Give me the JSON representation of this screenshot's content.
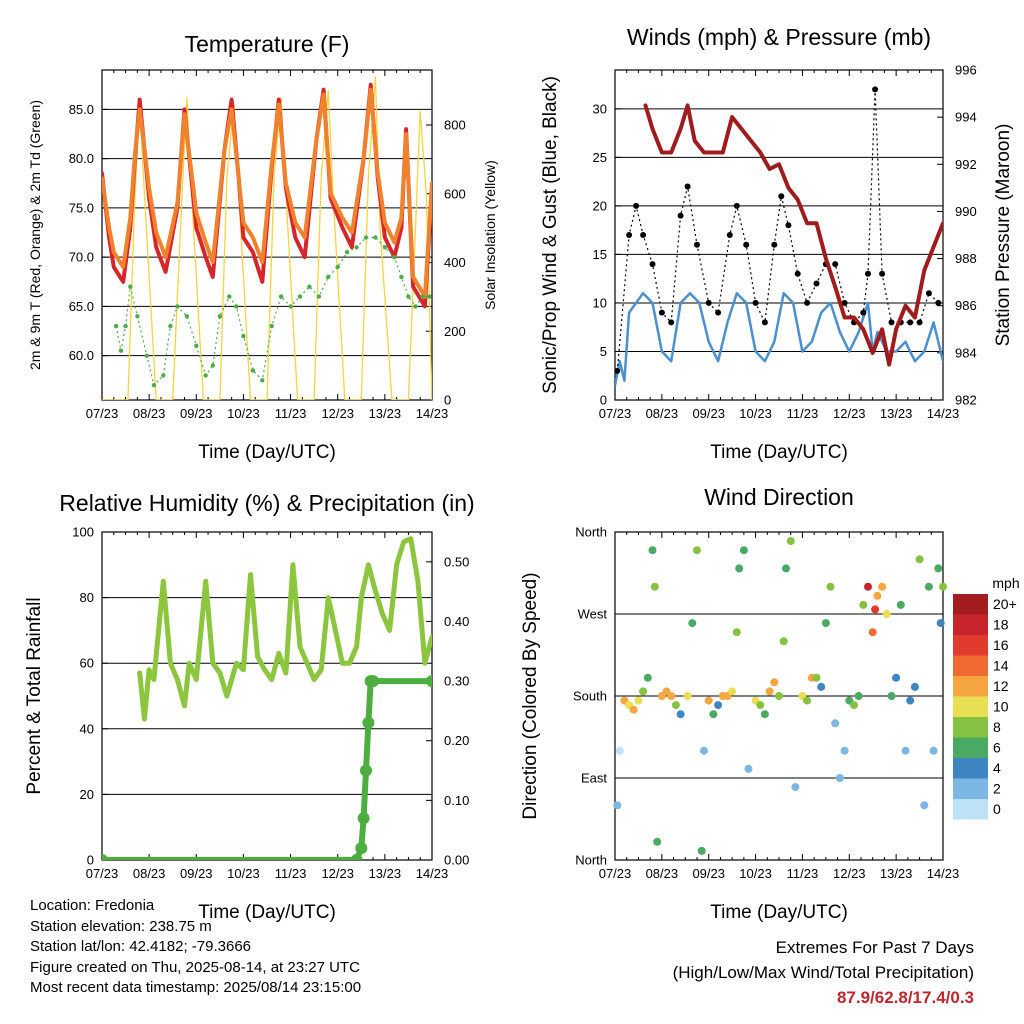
{
  "x_ticks": [
    "07/23",
    "08/23",
    "09/23",
    "10/23",
    "11/23",
    "12/23",
    "13/23",
    "14/23"
  ],
  "footer": {
    "location": "Location: Fredonia",
    "elevation": "Station elevation: 238.75 m",
    "latlon": "Station lat/lon: 42.4182; -79.3666",
    "created": "Figure created on Thu, 2025-08-14, at 23:27 UTC",
    "recent": "Most recent data timestamp: 2025/08/14 23:15:00"
  },
  "extremes": {
    "title": "Extremes For Past 7 Days",
    "subtitle": "(High/Low/Max Wind/Total Precipitation)",
    "values": "87.9/62.8/17.4/0.3",
    "value_color": "#c0272d"
  },
  "chart_data": [
    {
      "id": "temperature",
      "type": "line",
      "title": "Temperature (F)",
      "xlabel": "Time (Day/UTC)",
      "ylabel": "2m & 9m T (Red, Orange) & 2m Td (Green)",
      "ylabel_right": "Solar Insolation (Yellow)",
      "xlim": [
        0,
        7
      ],
      "ylim": [
        55.5,
        89
      ],
      "ylim_right": [
        0,
        960
      ],
      "yticks": [
        "60.0",
        "65.0",
        "70.0",
        "75.0",
        "80.0",
        "85.0"
      ],
      "yticks_right": [
        "0",
        "200",
        "400",
        "600",
        "800"
      ],
      "grid": true,
      "series": [
        {
          "name": "2m T",
          "color": "#d7262a",
          "axis": "left",
          "x": [
            0,
            0.15,
            0.25,
            0.45,
            0.6,
            0.7,
            0.8,
            1.0,
            1.15,
            1.35,
            1.6,
            1.75,
            2.0,
            2.2,
            2.35,
            2.6,
            2.75,
            2.9,
            3.0,
            3.2,
            3.4,
            3.6,
            3.75,
            3.9,
            4.1,
            4.3,
            4.55,
            4.7,
            4.85,
            5.1,
            5.3,
            5.55,
            5.7,
            5.85,
            6.0,
            6.2,
            6.35,
            6.45,
            6.6,
            6.85,
            7.0
          ],
          "y": [
            78.5,
            72,
            69,
            67.5,
            73,
            80,
            86,
            76,
            71,
            68.5,
            75,
            85,
            73,
            70,
            68,
            81,
            86,
            78,
            72,
            70.5,
            67.5,
            79,
            86,
            77,
            72,
            70,
            82,
            87,
            76,
            73,
            71,
            80,
            87.5,
            78,
            72,
            70,
            73,
            83,
            67,
            65,
            77
          ]
        },
        {
          "name": "9m T",
          "color": "#f0822e",
          "axis": "left",
          "x": [
            0,
            0.15,
            0.25,
            0.45,
            0.6,
            0.7,
            0.8,
            1.0,
            1.15,
            1.35,
            1.6,
            1.75,
            2.0,
            2.2,
            2.35,
            2.6,
            2.75,
            2.9,
            3.0,
            3.2,
            3.4,
            3.6,
            3.75,
            3.9,
            4.1,
            4.3,
            4.55,
            4.7,
            4.85,
            5.1,
            5.3,
            5.55,
            5.7,
            5.85,
            6.0,
            6.2,
            6.35,
            6.45,
            6.6,
            6.85,
            7.0
          ],
          "y": [
            78,
            73,
            70.5,
            69,
            74,
            80.5,
            85,
            77,
            72.5,
            70,
            75.5,
            84.5,
            74.5,
            71.5,
            69.5,
            81,
            85,
            78,
            73.5,
            72,
            69.5,
            79.5,
            85.5,
            77.5,
            73.5,
            72,
            82,
            86.5,
            76.5,
            74,
            72.5,
            80,
            87,
            78.5,
            73.5,
            71.5,
            74,
            82.5,
            68,
            66,
            77.5
          ]
        },
        {
          "name": "2m Td",
          "color": "#4cad47",
          "axis": "left",
          "x": [
            0.3,
            0.4,
            0.5,
            0.6,
            0.75,
            0.95,
            1.1,
            1.3,
            1.45,
            1.6,
            1.8,
            2.0,
            2.2,
            2.35,
            2.5,
            2.7,
            2.85,
            3.0,
            3.2,
            3.4,
            3.6,
            3.8,
            4.0,
            4.2,
            4.4,
            4.6,
            4.8,
            5.0,
            5.2,
            5.4,
            5.6,
            5.8,
            6.0,
            6.2,
            6.35,
            6.5,
            6.65,
            6.8,
            6.95
          ],
          "y": [
            63,
            60.5,
            63,
            67,
            64,
            60,
            57,
            58,
            63,
            65,
            64,
            61,
            58,
            59,
            64,
            66,
            65,
            62,
            58.5,
            57.5,
            63,
            66,
            65,
            66,
            67,
            66,
            68,
            69,
            70.5,
            71,
            72,
            72,
            71,
            70,
            68,
            66,
            65,
            66,
            66
          ]
        },
        {
          "name": "Solar Insolation",
          "color": "#f7d33c",
          "axis": "right",
          "x": [
            0,
            0.55,
            0.7,
            0.8,
            0.9,
            1.15,
            1.5,
            1.7,
            1.8,
            1.9,
            2.15,
            2.5,
            2.65,
            2.8,
            2.9,
            3.15,
            3.5,
            3.65,
            3.8,
            3.9,
            4.15,
            4.5,
            4.65,
            4.8,
            4.9,
            5.15,
            5.5,
            5.65,
            5.8,
            5.9,
            6.15,
            6.5,
            6.62,
            6.75,
            6.88,
            7.0
          ],
          "y": [
            0,
            0,
            600,
            860,
            600,
            0,
            0,
            600,
            880,
            600,
            0,
            0,
            650,
            860,
            600,
            0,
            0,
            650,
            880,
            600,
            0,
            0,
            650,
            900,
            600,
            0,
            0,
            650,
            940,
            500,
            0,
            0,
            400,
            840,
            600,
            0
          ]
        }
      ]
    },
    {
      "id": "winds",
      "type": "line",
      "title": "Winds (mph) & Pressure (mb)",
      "xlabel": "Time (Day/UTC)",
      "ylabel": "Sonic/Prop Wind & Gust (Blue, Black)",
      "ylabel_right": "Station Pressure (Maroon)",
      "xlim": [
        0,
        7
      ],
      "ylim": [
        0,
        34
      ],
      "ylim_right": [
        982,
        996
      ],
      "yticks": [
        "0",
        "5",
        "10",
        "15",
        "20",
        "25",
        "30"
      ],
      "yticks_right": [
        "982",
        "984",
        "986",
        "988",
        "990",
        "992",
        "994",
        "996"
      ],
      "grid": true,
      "series": [
        {
          "name": "Wind",
          "color": "#4a90cf",
          "axis": "left",
          "x": [
            0,
            0.1,
            0.2,
            0.3,
            0.45,
            0.6,
            0.8,
            1.0,
            1.2,
            1.4,
            1.6,
            1.8,
            2.0,
            2.2,
            2.4,
            2.6,
            2.8,
            3.0,
            3.2,
            3.4,
            3.6,
            3.8,
            4.0,
            4.2,
            4.4,
            4.6,
            4.8,
            5.0,
            5.2,
            5.4,
            5.5,
            5.6,
            5.8,
            6.0,
            6.2,
            6.4,
            6.6,
            6.8,
            7.0
          ],
          "y": [
            1.5,
            4,
            2,
            9,
            10,
            11,
            10,
            5,
            4,
            10,
            11,
            10,
            6,
            4,
            8,
            11,
            10,
            5,
            4,
            6,
            11,
            10,
            5,
            6,
            9,
            10,
            7,
            5,
            7,
            10,
            5,
            7,
            5,
            5,
            6,
            4,
            5,
            8,
            4
          ]
        },
        {
          "name": "Gust",
          "color": "#000000",
          "axis": "left",
          "x": [
            0.05,
            0.3,
            0.45,
            0.6,
            0.8,
            1.0,
            1.2,
            1.4,
            1.55,
            1.75,
            2.0,
            2.2,
            2.45,
            2.6,
            2.8,
            3.0,
            3.2,
            3.4,
            3.55,
            3.7,
            3.9,
            4.1,
            4.3,
            4.5,
            4.7,
            4.9,
            5.1,
            5.3,
            5.4,
            5.55,
            5.7,
            5.9,
            6.1,
            6.3,
            6.5,
            6.7,
            6.9
          ],
          "y": [
            3,
            17,
            20,
            17,
            14,
            9,
            8,
            19,
            22,
            16,
            10,
            9,
            17,
            20,
            16,
            10,
            8,
            16,
            21,
            18,
            13,
            10,
            12,
            14,
            14,
            10,
            8,
            9,
            13,
            32,
            13,
            8,
            8,
            8,
            8,
            11,
            10
          ]
        },
        {
          "name": "Station Pressure",
          "color": "#a01c1c",
          "axis": "right",
          "x": [
            0.65,
            0.8,
            1.0,
            1.2,
            1.4,
            1.55,
            1.7,
            1.9,
            2.1,
            2.3,
            2.5,
            2.7,
            2.9,
            3.1,
            3.3,
            3.5,
            3.7,
            3.9,
            4.1,
            4.3,
            4.5,
            4.7,
            4.9,
            5.1,
            5.3,
            5.5,
            5.7,
            5.85,
            6.0,
            6.2,
            6.4,
            6.6,
            6.8,
            7.0
          ],
          "y": [
            994.5,
            993.5,
            992.5,
            992.5,
            993.5,
            994.5,
            993,
            992.5,
            992.5,
            992.5,
            994,
            993.5,
            993,
            992.5,
            991.8,
            992,
            991,
            990.5,
            989.5,
            989.5,
            988,
            986.8,
            985.5,
            985.5,
            985,
            984,
            985,
            983.5,
            985,
            986,
            985.5,
            987.5,
            988.5,
            989.5
          ]
        }
      ]
    },
    {
      "id": "humidity",
      "type": "line",
      "title": "Relative Humidity (%) & Precipitation (in)",
      "xlabel": "Time (Day/UTC)",
      "ylabel": "Percent & Total Rainfall",
      "xlim": [
        0,
        7
      ],
      "ylim": [
        0,
        100
      ],
      "ylim_right": [
        0,
        0.55
      ],
      "yticks": [
        "0",
        "20",
        "40",
        "60",
        "80",
        "100"
      ],
      "yticks_right": [
        "0.00",
        "0.10",
        "0.20",
        "0.30",
        "0.40",
        "0.50"
      ],
      "grid": true,
      "series": [
        {
          "name": "Relative Humidity",
          "color": "#8cc63e",
          "axis": "left",
          "x": [
            0.8,
            0.9,
            1.0,
            1.1,
            1.3,
            1.45,
            1.6,
            1.75,
            1.85,
            2.0,
            2.2,
            2.35,
            2.5,
            2.65,
            2.85,
            3.0,
            3.15,
            3.3,
            3.45,
            3.6,
            3.75,
            3.9,
            4.05,
            4.2,
            4.35,
            4.5,
            4.65,
            4.8,
            4.95,
            5.1,
            5.25,
            5.4,
            5.5,
            5.65,
            5.8,
            5.95,
            6.1,
            6.25,
            6.4,
            6.55,
            6.7,
            6.85,
            7.0
          ],
          "y": [
            57,
            43,
            58,
            55,
            85,
            60,
            55,
            47,
            60,
            55,
            85,
            60,
            57,
            50,
            60,
            58,
            87,
            62,
            58,
            55,
            63,
            57,
            90,
            65,
            60,
            55,
            58,
            80,
            70,
            60,
            60,
            65,
            80,
            90,
            82,
            75,
            70,
            90,
            97,
            98,
            85,
            60,
            68
          ]
        },
        {
          "name": "Total Rainfall",
          "color": "#4cae3e",
          "axis": "right",
          "x": [
            0,
            5.4,
            5.5,
            5.55,
            5.6,
            5.65,
            5.7,
            5.75,
            7.0
          ],
          "y": [
            0,
            0,
            0.02,
            0.07,
            0.15,
            0.23,
            0.3,
            0.3,
            0.3
          ]
        }
      ]
    },
    {
      "id": "direction",
      "type": "scatter",
      "title": "Wind Direction",
      "xlabel": "Time (Day/UTC)",
      "ylabel": "Direction (Colored By Speed)",
      "xlim": [
        0,
        7
      ],
      "ylim": [
        0,
        360
      ],
      "yticks": [
        "North",
        "East",
        "South",
        "West",
        "North"
      ],
      "grid": true,
      "legend": {
        "placement": "right",
        "title": "mph",
        "labels": [
          "20+",
          "18",
          "16",
          "14",
          "12",
          "10",
          "8",
          "6",
          "4",
          "2",
          "0"
        ],
        "colors": [
          "#a31c20",
          "#c8242b",
          "#e13a2f",
          "#f06a32",
          "#f6a640",
          "#e9df52",
          "#86c242",
          "#4aa962",
          "#3e86c3",
          "#7cb7e4",
          "#bde2f6"
        ]
      },
      "series": [
        {
          "name": "Wind direction",
          "x": [
            0.05,
            0.1,
            0.2,
            0.3,
            0.4,
            0.5,
            0.6,
            0.7,
            0.8,
            0.85,
            0.9,
            1.0,
            1.1,
            1.2,
            1.3,
            1.4,
            1.55,
            1.65,
            1.75,
            1.85,
            1.9,
            2.0,
            2.1,
            2.2,
            2.3,
            2.4,
            2.5,
            2.6,
            2.65,
            2.75,
            2.85,
            3.0,
            3.1,
            3.2,
            3.3,
            3.4,
            3.5,
            3.6,
            3.65,
            3.75,
            3.85,
            4.0,
            4.1,
            4.2,
            4.3,
            4.4,
            4.5,
            4.6,
            4.7,
            4.8,
            4.9,
            5.0,
            5.1,
            5.2,
            5.3,
            5.4,
            5.5,
            5.55,
            5.6,
            5.7,
            5.8,
            5.9,
            6.0,
            6.1,
            6.2,
            6.3,
            6.4,
            6.5,
            6.6,
            6.7,
            6.8,
            6.9,
            6.95,
            7.0
          ],
          "y": [
            60,
            120,
            175,
            170,
            165,
            175,
            185,
            200,
            340,
            300,
            20,
            180,
            185,
            180,
            170,
            160,
            180,
            260,
            340,
            10,
            120,
            175,
            160,
            170,
            180,
            180,
            185,
            250,
            320,
            340,
            100,
            175,
            170,
            160,
            185,
            195,
            180,
            240,
            320,
            350,
            80,
            180,
            175,
            200,
            200,
            190,
            260,
            300,
            150,
            90,
            120,
            175,
            170,
            180,
            280,
            300,
            250,
            275,
            290,
            300,
            270,
            180,
            200,
            280,
            120,
            175,
            190,
            330,
            60,
            300,
            120,
            320,
            260,
            300
          ],
          "speed": [
            2,
            1,
            12,
            11,
            12,
            10,
            8,
            6,
            6,
            8,
            6,
            12,
            12,
            12,
            8,
            4,
            10,
            6,
            8,
            6,
            3,
            12,
            6,
            4,
            12,
            12,
            10,
            8,
            6,
            6,
            3,
            10,
            8,
            6,
            12,
            12,
            8,
            8,
            6,
            8,
            2,
            10,
            8,
            12,
            8,
            4,
            6,
            8,
            3,
            2,
            2,
            6,
            8,
            6,
            8,
            18,
            14,
            16,
            12,
            12,
            10,
            6,
            4,
            6,
            2,
            4,
            4,
            8,
            2,
            6,
            3,
            6,
            4,
            8
          ]
        }
      ]
    }
  ]
}
